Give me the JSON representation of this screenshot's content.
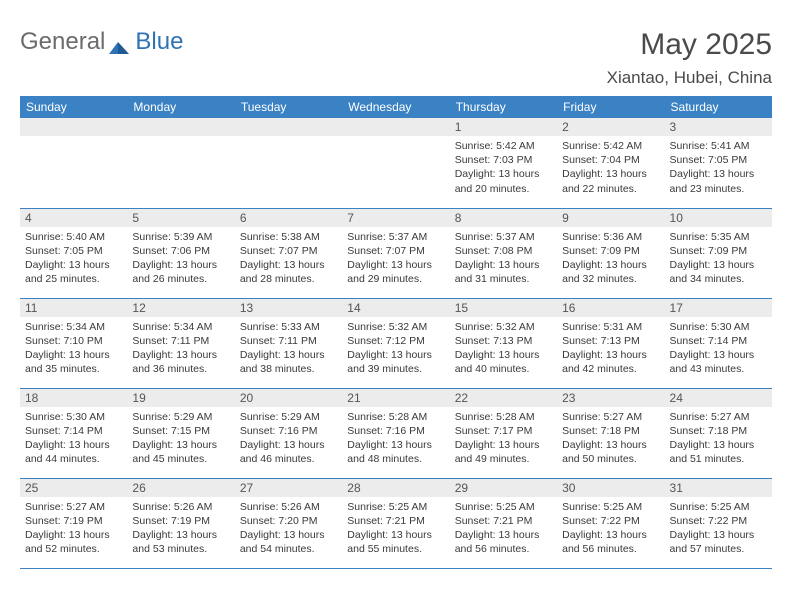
{
  "logo": {
    "general": "General",
    "blue": "Blue"
  },
  "title": "May 2025",
  "location": "Xiantao, Hubei, China",
  "colors": {
    "header_bg": "#3b82c4",
    "header_text": "#ffffff",
    "daynum_bg": "#ececec",
    "border": "#3b82c4",
    "text": "#3a3a3a",
    "title_color": "#4a4a4a"
  },
  "weekdays": [
    "Sunday",
    "Monday",
    "Tuesday",
    "Wednesday",
    "Thursday",
    "Friday",
    "Saturday"
  ],
  "first_weekday_index": 4,
  "days": [
    {
      "n": 1,
      "sunrise": "5:42 AM",
      "sunset": "7:03 PM",
      "daylight": "13 hours and 20 minutes."
    },
    {
      "n": 2,
      "sunrise": "5:42 AM",
      "sunset": "7:04 PM",
      "daylight": "13 hours and 22 minutes."
    },
    {
      "n": 3,
      "sunrise": "5:41 AM",
      "sunset": "7:05 PM",
      "daylight": "13 hours and 23 minutes."
    },
    {
      "n": 4,
      "sunrise": "5:40 AM",
      "sunset": "7:05 PM",
      "daylight": "13 hours and 25 minutes."
    },
    {
      "n": 5,
      "sunrise": "5:39 AM",
      "sunset": "7:06 PM",
      "daylight": "13 hours and 26 minutes."
    },
    {
      "n": 6,
      "sunrise": "5:38 AM",
      "sunset": "7:07 PM",
      "daylight": "13 hours and 28 minutes."
    },
    {
      "n": 7,
      "sunrise": "5:37 AM",
      "sunset": "7:07 PM",
      "daylight": "13 hours and 29 minutes."
    },
    {
      "n": 8,
      "sunrise": "5:37 AM",
      "sunset": "7:08 PM",
      "daylight": "13 hours and 31 minutes."
    },
    {
      "n": 9,
      "sunrise": "5:36 AM",
      "sunset": "7:09 PM",
      "daylight": "13 hours and 32 minutes."
    },
    {
      "n": 10,
      "sunrise": "5:35 AM",
      "sunset": "7:09 PM",
      "daylight": "13 hours and 34 minutes."
    },
    {
      "n": 11,
      "sunrise": "5:34 AM",
      "sunset": "7:10 PM",
      "daylight": "13 hours and 35 minutes."
    },
    {
      "n": 12,
      "sunrise": "5:34 AM",
      "sunset": "7:11 PM",
      "daylight": "13 hours and 36 minutes."
    },
    {
      "n": 13,
      "sunrise": "5:33 AM",
      "sunset": "7:11 PM",
      "daylight": "13 hours and 38 minutes."
    },
    {
      "n": 14,
      "sunrise": "5:32 AM",
      "sunset": "7:12 PM",
      "daylight": "13 hours and 39 minutes."
    },
    {
      "n": 15,
      "sunrise": "5:32 AM",
      "sunset": "7:13 PM",
      "daylight": "13 hours and 40 minutes."
    },
    {
      "n": 16,
      "sunrise": "5:31 AM",
      "sunset": "7:13 PM",
      "daylight": "13 hours and 42 minutes."
    },
    {
      "n": 17,
      "sunrise": "5:30 AM",
      "sunset": "7:14 PM",
      "daylight": "13 hours and 43 minutes."
    },
    {
      "n": 18,
      "sunrise": "5:30 AM",
      "sunset": "7:14 PM",
      "daylight": "13 hours and 44 minutes."
    },
    {
      "n": 19,
      "sunrise": "5:29 AM",
      "sunset": "7:15 PM",
      "daylight": "13 hours and 45 minutes."
    },
    {
      "n": 20,
      "sunrise": "5:29 AM",
      "sunset": "7:16 PM",
      "daylight": "13 hours and 46 minutes."
    },
    {
      "n": 21,
      "sunrise": "5:28 AM",
      "sunset": "7:16 PM",
      "daylight": "13 hours and 48 minutes."
    },
    {
      "n": 22,
      "sunrise": "5:28 AM",
      "sunset": "7:17 PM",
      "daylight": "13 hours and 49 minutes."
    },
    {
      "n": 23,
      "sunrise": "5:27 AM",
      "sunset": "7:18 PM",
      "daylight": "13 hours and 50 minutes."
    },
    {
      "n": 24,
      "sunrise": "5:27 AM",
      "sunset": "7:18 PM",
      "daylight": "13 hours and 51 minutes."
    },
    {
      "n": 25,
      "sunrise": "5:27 AM",
      "sunset": "7:19 PM",
      "daylight": "13 hours and 52 minutes."
    },
    {
      "n": 26,
      "sunrise": "5:26 AM",
      "sunset": "7:19 PM",
      "daylight": "13 hours and 53 minutes."
    },
    {
      "n": 27,
      "sunrise": "5:26 AM",
      "sunset": "7:20 PM",
      "daylight": "13 hours and 54 minutes."
    },
    {
      "n": 28,
      "sunrise": "5:25 AM",
      "sunset": "7:21 PM",
      "daylight": "13 hours and 55 minutes."
    },
    {
      "n": 29,
      "sunrise": "5:25 AM",
      "sunset": "7:21 PM",
      "daylight": "13 hours and 56 minutes."
    },
    {
      "n": 30,
      "sunrise": "5:25 AM",
      "sunset": "7:22 PM",
      "daylight": "13 hours and 56 minutes."
    },
    {
      "n": 31,
      "sunrise": "5:25 AM",
      "sunset": "7:22 PM",
      "daylight": "13 hours and 57 minutes."
    }
  ],
  "labels": {
    "sunrise": "Sunrise:",
    "sunset": "Sunset:",
    "daylight": "Daylight:"
  }
}
